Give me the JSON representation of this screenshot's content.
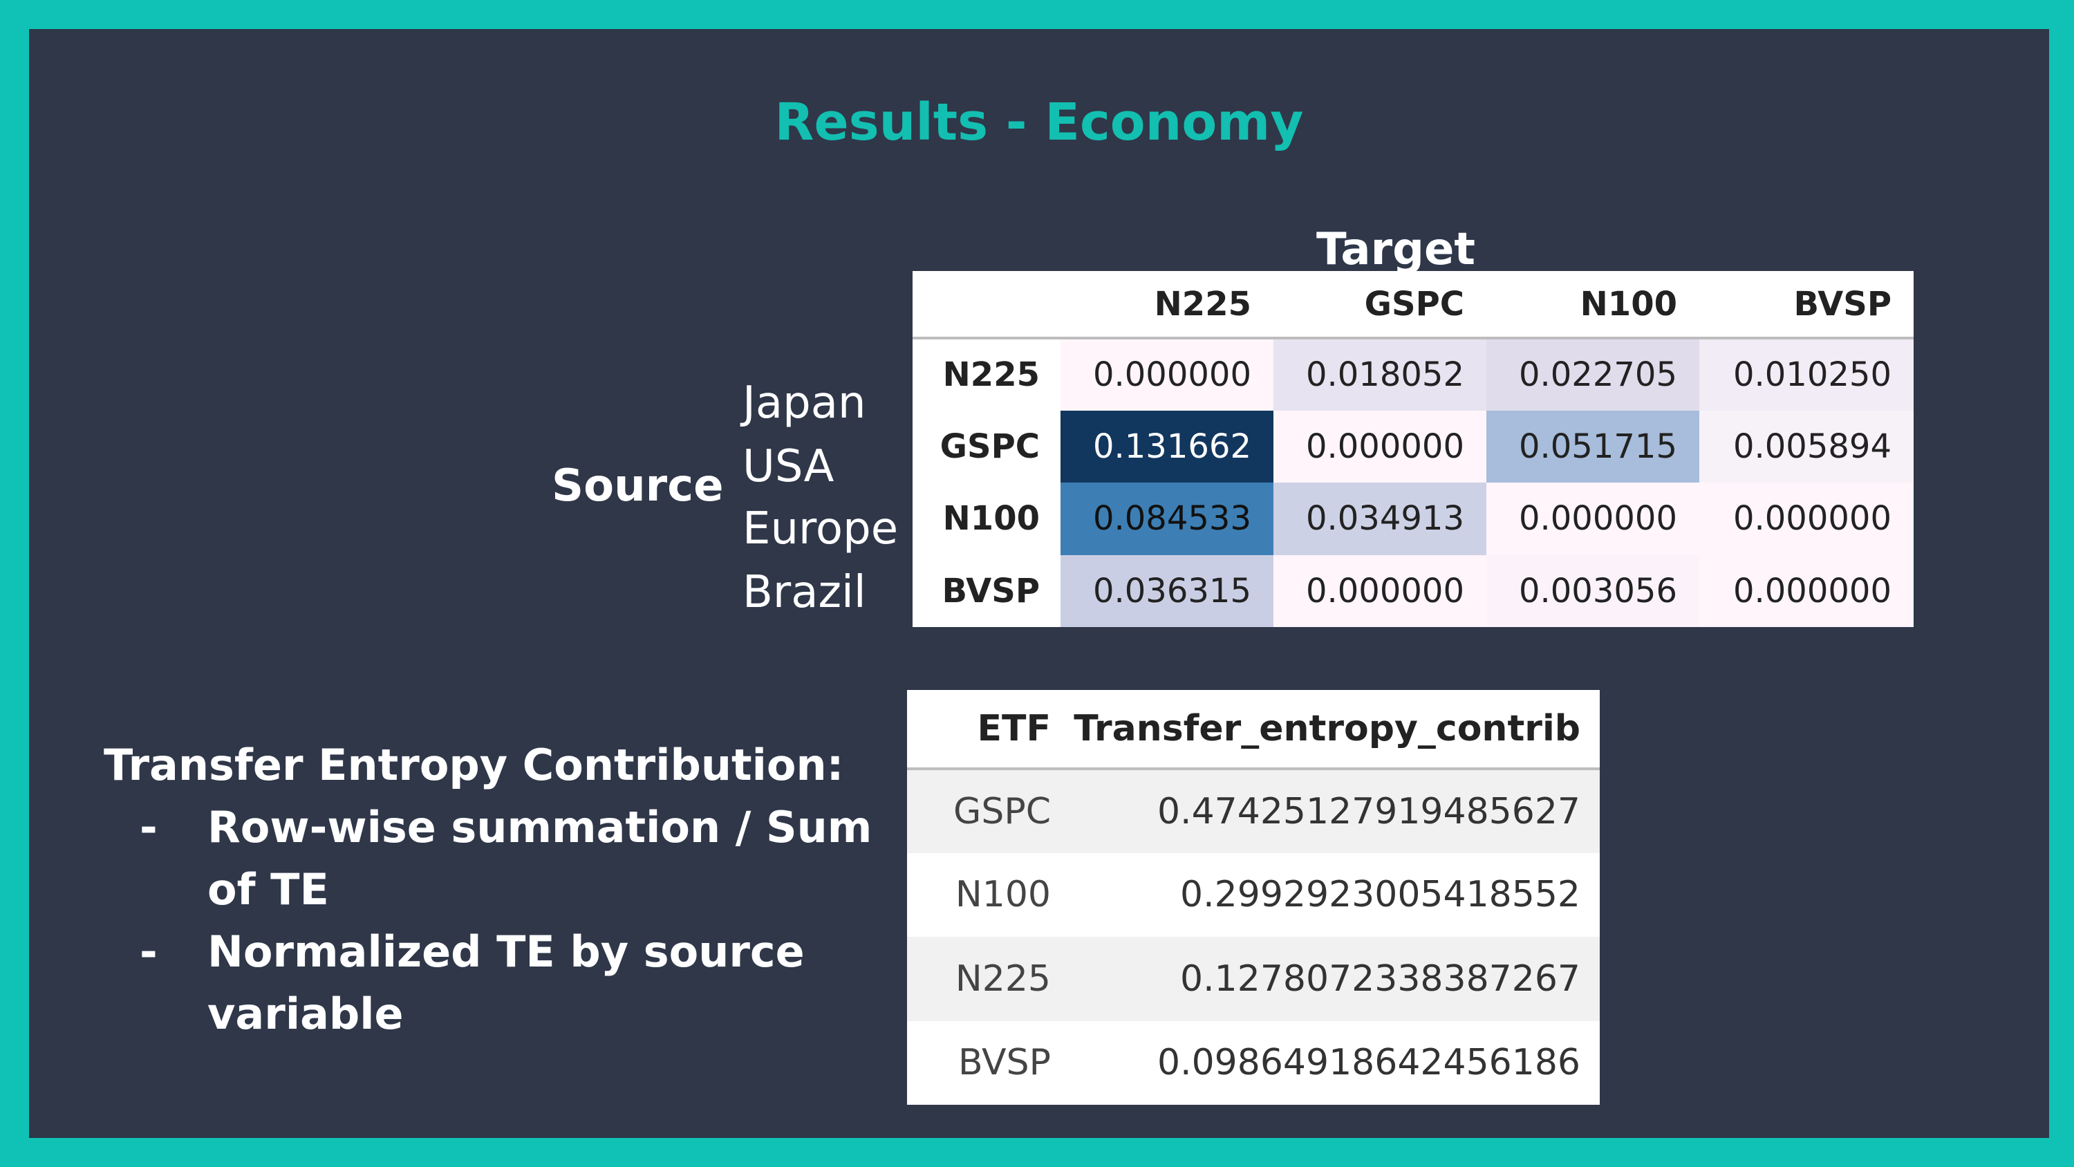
{
  "slide_title": "Results - Economy",
  "target_label": "Target",
  "source_label": "Source",
  "countries": [
    "Japan",
    "USA",
    "Europe",
    "Brazil"
  ],
  "te_table": {
    "columns": [
      "",
      "N225",
      "GSPC",
      "N100",
      "BVSP"
    ],
    "rows": [
      {
        "label": "N225",
        "cells": [
          {
            "value": "0.000000",
            "bg": "#fff5fa",
            "fg": "#222222"
          },
          {
            "value": "0.018052",
            "bg": "#e8e3f0",
            "fg": "#222222"
          },
          {
            "value": "0.022705",
            "bg": "#e1dcec",
            "fg": "#222222"
          },
          {
            "value": "0.010250",
            "bg": "#f1ecf5",
            "fg": "#222222"
          }
        ]
      },
      {
        "label": "GSPC",
        "cells": [
          {
            "value": "0.131662",
            "bg": "#12375f",
            "fg": "#ffffff"
          },
          {
            "value": "0.000000",
            "bg": "#fff5fa",
            "fg": "#222222"
          },
          {
            "value": "0.051715",
            "bg": "#a7bddb",
            "fg": "#222222"
          },
          {
            "value": "0.005894",
            "bg": "#f7f1f8",
            "fg": "#222222"
          }
        ]
      },
      {
        "label": "N100",
        "cells": [
          {
            "value": "0.084533",
            "bg": "#3d7fb4",
            "fg": "#111111"
          },
          {
            "value": "0.034913",
            "bg": "#cdd1e6",
            "fg": "#222222"
          },
          {
            "value": "0.000000",
            "bg": "#fff5fa",
            "fg": "#222222"
          },
          {
            "value": "0.000000",
            "bg": "#fff5fa",
            "fg": "#222222"
          }
        ]
      },
      {
        "label": "BVSP",
        "cells": [
          {
            "value": "0.036315",
            "bg": "#cacee4",
            "fg": "#222222"
          },
          {
            "value": "0.000000",
            "bg": "#fff5fa",
            "fg": "#222222"
          },
          {
            "value": "0.003056",
            "bg": "#fbf3f9",
            "fg": "#222222"
          },
          {
            "value": "0.000000",
            "bg": "#fff5fa",
            "fg": "#222222"
          }
        ]
      }
    ]
  },
  "contribution": {
    "heading": "Transfer Entropy Contribution:",
    "bullet_char": "-",
    "bullets": [
      "Row-wise summation / Sum of TE",
      "Normalized TE by source variable"
    ]
  },
  "etf_table": {
    "columns": [
      "ETF",
      "Transfer_entropy_contrib"
    ],
    "rows": [
      [
        "GSPC",
        "0.47425127919485627"
      ],
      [
        "N100",
        "0.2992923005418552"
      ],
      [
        "N225",
        "0.1278072338387267"
      ],
      [
        "BVSP",
        "0.09864918642456186"
      ]
    ]
  }
}
